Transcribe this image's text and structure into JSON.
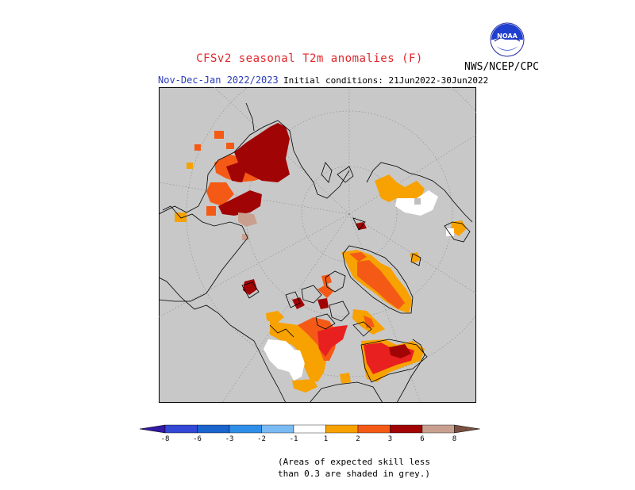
{
  "title": "CFSv2 seasonal T2m anomalies (F)",
  "period": "Nov-Dec-Jan 2022/2023",
  "initial_conditions": "Initial conditions: 21Jun2022-30Jun2022",
  "agency": "NWS/NCEP/CPC",
  "logo_text": "NOAA",
  "colors": {
    "background_grey": "#c8c8c8",
    "coast": "#000000",
    "orange": "#f7a200",
    "red_orange": "#f45a16",
    "red": "#e82020",
    "dark_red": "#a10404",
    "pinkish": "#c9a090",
    "white": "#ffffff"
  },
  "legend": {
    "labels": [
      "-8",
      "-6",
      "-3",
      "-2",
      "-1",
      "1",
      "2",
      "3",
      "6",
      "8"
    ],
    "colors": [
      "#3219a4",
      "#3348d5",
      "#1a64cd",
      "#2f8ee8",
      "#7abaf2",
      "#ffffff",
      "#f7a200",
      "#f45a16",
      "#a10404",
      "#c9a090",
      "#7a5040"
    ]
  },
  "note": {
    "line1": "(Areas of expected skill less",
    "line2": "than 0.3 are shaded in grey.)"
  }
}
